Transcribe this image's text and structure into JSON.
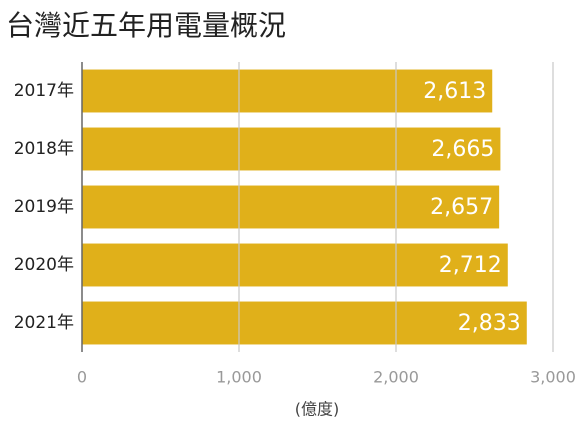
{
  "chart_data": {
    "type": "bar",
    "orientation": "horizontal",
    "title": "台灣近五年用電量概況",
    "categories": [
      "2017年",
      "2018年",
      "2019年",
      "2020年",
      "2021年"
    ],
    "values": [
      2613,
      2665,
      2657,
      2712,
      2833
    ],
    "value_labels": [
      "2,613",
      "2,665",
      "2,657",
      "2,712",
      "2,833"
    ],
    "color": "#e0b01a",
    "xlim": [
      0,
      3000
    ],
    "xticks": [
      0,
      {
        "value": 1000,
        "label": "1,000"
      },
      {
        "value": 2000,
        "label": "2,000"
      },
      {
        "value": 3000,
        "label": "3,000"
      }
    ],
    "xlabel": "(億度)",
    "grid": true
  }
}
